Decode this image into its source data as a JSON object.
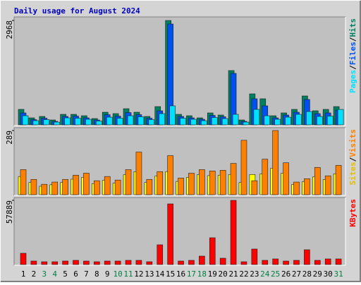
{
  "chart_data": [
    {
      "type": "bar",
      "title": "Daily usage for August 2024",
      "legend_reversed": true,
      "legend_separator": "/",
      "ylim": [
        0,
        2968
      ],
      "yticks": [
        2968
      ],
      "series": [
        {
          "name": "Hits",
          "color": "#008060",
          "values": [
            441,
            200,
            240,
            140,
            300,
            300,
            260,
            180,
            360,
            320,
            460,
            360,
            240,
            520,
            2968,
            300,
            260,
            200,
            340,
            280,
            1544,
            140,
            882,
            742,
            260,
            340,
            441,
            822,
            401,
            441,
            520
          ]
        },
        {
          "name": "Files",
          "color": "#0050f0",
          "values": [
            340,
            150,
            190,
            100,
            240,
            250,
            200,
            140,
            290,
            250,
            350,
            290,
            190,
            400,
            2868,
            240,
            200,
            160,
            270,
            230,
            1464,
            100,
            742,
            541,
            200,
            280,
            360,
            722,
            320,
            340,
            420
          ]
        },
        {
          "name": "Pages",
          "color": "#00e0ff",
          "values": [
            260,
            120,
            150,
            80,
            200,
            190,
            160,
            110,
            220,
            190,
            260,
            230,
            150,
            320,
            541,
            190,
            160,
            120,
            210,
            180,
            300,
            80,
            440,
            260,
            160,
            220,
            300,
            380,
            240,
            250,
            440
          ]
        }
      ]
    },
    {
      "type": "bar",
      "legend_reversed": false,
      "legend_separator": "/",
      "ylim": [
        0,
        289
      ],
      "yticks": [
        289
      ],
      "series": [
        {
          "name": "Sites",
          "color": "#ffff00",
          "values": [
            82,
            55,
            38,
            45,
            55,
            70,
            78,
            50,
            65,
            52,
            90,
            104,
            55,
            84,
            104,
            60,
            78,
            90,
            86,
            88,
            91,
            55,
            91,
            94,
            119,
            97,
            46,
            58,
            80,
            68,
            94
          ]
        },
        {
          "name": "Visits",
          "color": "#ff8000",
          "values": [
            113,
            69,
            47,
            57,
            69,
            88,
            97,
            63,
            82,
            66,
            113,
            192,
            69,
            104,
            176,
            75,
            97,
            113,
            107,
            110,
            141,
            245,
            63,
            160,
            289,
            144,
            57,
            72,
            123,
            85,
            132
          ]
        }
      ]
    },
    {
      "type": "bar",
      "legend_reversed": false,
      "legend_separator": "/",
      "ylim": [
        0,
        57889
      ],
      "yticks": [
        57889
      ],
      "categories": [
        "1",
        "2",
        "3",
        "4",
        "5",
        "6",
        "7",
        "8",
        "9",
        "10",
        "11",
        "12",
        "13",
        "14",
        "15",
        "16",
        "17",
        "18",
        "19",
        "20",
        "21",
        "22",
        "23",
        "24",
        "25",
        "26",
        "27",
        "28",
        "29",
        "30",
        "31"
      ],
      "category_colors": [
        "#000000",
        "#000000",
        "#008040",
        "#008040",
        "#000000",
        "#000000",
        "#000000",
        "#000000",
        "#000000",
        "#008040",
        "#008040",
        "#000000",
        "#000000",
        "#000000",
        "#000000",
        "#000000",
        "#008040",
        "#008040",
        "#000000",
        "#000000",
        "#000000",
        "#000000",
        "#000000",
        "#008040",
        "#008040",
        "#000000",
        "#000000",
        "#000000",
        "#000000",
        "#000000",
        "#008040"
      ],
      "series": [
        {
          "name": "KBytes",
          "color": "#ff0000",
          "values": [
            10178,
            3181,
            2545,
            2545,
            3181,
            3817,
            3181,
            2545,
            3181,
            3181,
            3817,
            3817,
            2545,
            17812,
            54708,
            3181,
            3817,
            7634,
            24174,
            5725,
            57889,
            2545,
            13995,
            3817,
            5089,
            3181,
            3817,
            13359,
            3817,
            5089,
            5089
          ]
        }
      ]
    }
  ]
}
